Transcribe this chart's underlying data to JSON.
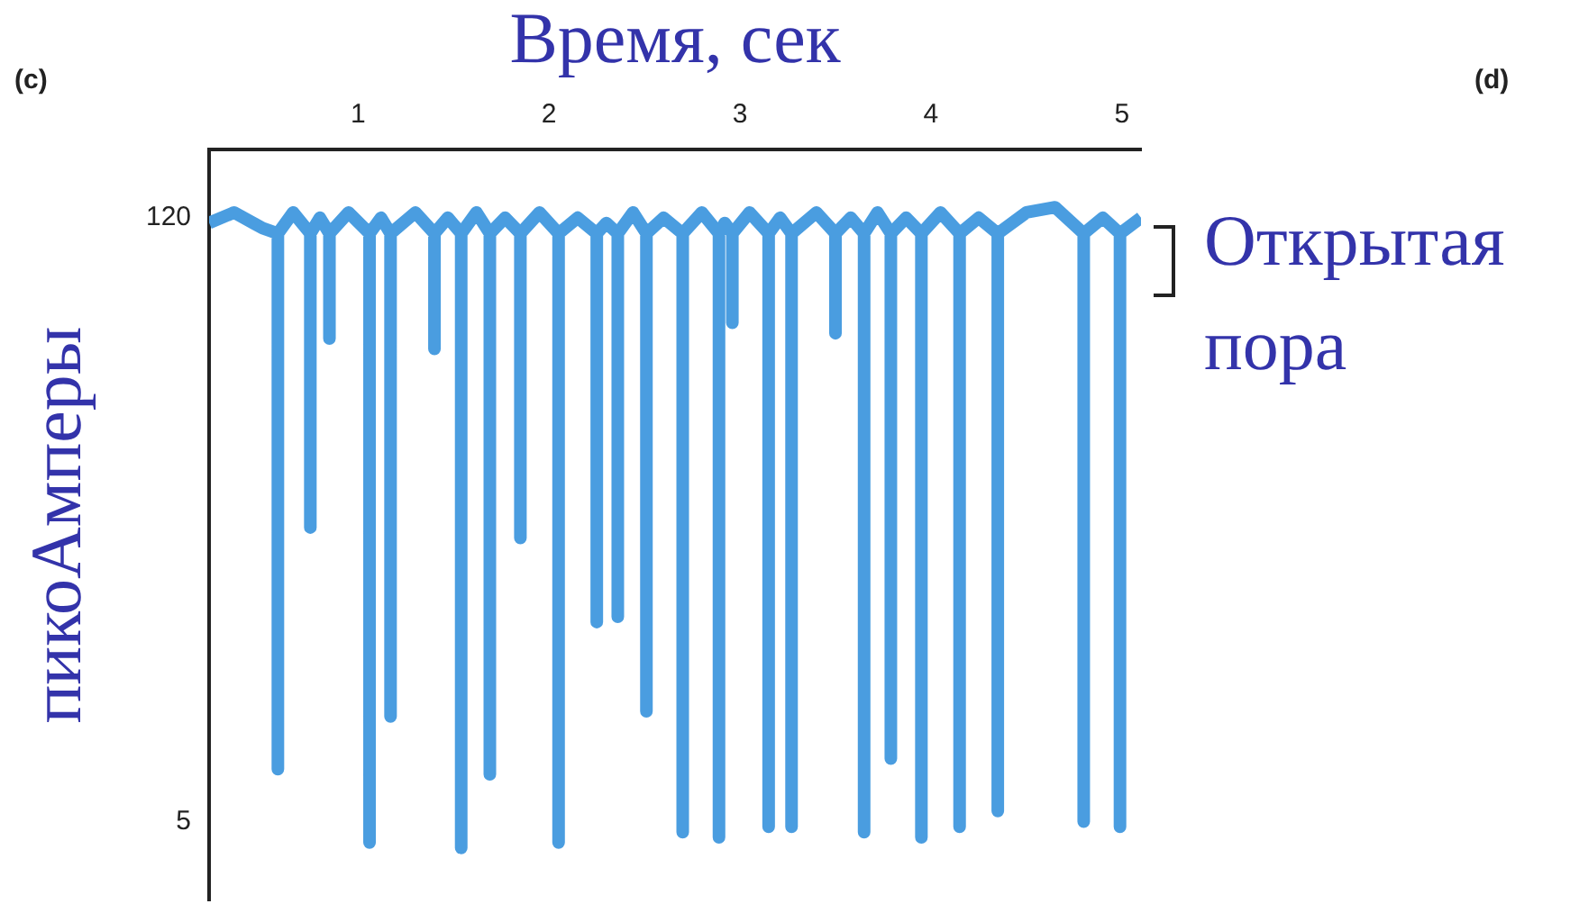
{
  "chart_data": {
    "type": "line",
    "xlabel": "Время, сек",
    "ylabel": "пикоАмперы",
    "annotations": [
      "(c)",
      "(d)",
      "Открытая пора"
    ],
    "x": [
      0.22,
      0.35,
      0.5,
      0.58,
      0.58,
      0.58,
      0.66,
      0.75,
      0.75,
      0.75,
      0.8,
      0.85,
      0.85,
      0.85,
      0.95,
      1.06,
      1.06,
      1.06,
      1.12,
      1.17,
      1.17,
      1.17,
      1.3,
      1.4,
      1.4,
      1.4,
      1.47,
      1.54,
      1.54,
      1.54,
      1.62,
      1.69,
      1.69,
      1.69,
      1.77,
      1.85,
      1.85,
      1.85,
      1.95,
      2.05,
      2.05,
      2.05,
      2.15,
      2.25,
      2.25,
      2.25,
      2.3,
      2.36,
      2.36,
      2.36,
      2.44,
      2.51,
      2.51,
      2.51,
      2.6,
      2.7,
      2.7,
      2.7,
      2.8,
      2.89,
      2.89,
      2.89,
      2.92,
      2.96,
      2.96,
      2.96,
      3.05,
      3.15,
      3.15,
      3.15,
      3.21,
      3.27,
      3.27,
      3.27,
      3.4,
      3.5,
      3.5,
      3.5,
      3.58,
      3.65,
      3.65,
      3.65,
      3.72,
      3.79,
      3.79,
      3.79,
      3.87,
      3.95,
      3.95,
      3.95,
      4.05,
      4.15,
      4.15,
      4.15,
      4.25,
      4.35,
      4.35,
      4.35,
      4.5,
      4.65,
      4.8,
      4.8,
      4.8,
      4.9,
      4.99,
      4.99,
      4.99,
      5.1
    ],
    "values": [
      119,
      121,
      118,
      117,
      15,
      117,
      121,
      117,
      61,
      117,
      120,
      117,
      97,
      117,
      121,
      117,
      1,
      117,
      120,
      117,
      25,
      117,
      121,
      117,
      95,
      117,
      120,
      117,
      0,
      117,
      121,
      117,
      14,
      117,
      120,
      117,
      59,
      117,
      121,
      117,
      1,
      117,
      120,
      117,
      43,
      117,
      119,
      117,
      44,
      117,
      121,
      117,
      26,
      117,
      120,
      117,
      3,
      117,
      121,
      117,
      2,
      117,
      119,
      117,
      100,
      117,
      121,
      117,
      4,
      117,
      120,
      117,
      4,
      117,
      121,
      117,
      98,
      117,
      120,
      117,
      3,
      117,
      121,
      117,
      17,
      117,
      120,
      117,
      2,
      117,
      121,
      117,
      4,
      117,
      120,
      117,
      7,
      117,
      121,
      122,
      117,
      5,
      117,
      120,
      117,
      4,
      117,
      120
    ],
    "color": "#4a9de0",
    "xlim": [
      0.22,
      5.1
    ],
    "ylim": [
      -10,
      133
    ],
    "xticks": [
      1,
      2,
      3,
      4,
      5
    ],
    "yticks": [
      120,
      5
    ],
    "grid": false,
    "legend": false,
    "marker": "none",
    "line_style": "solid"
  }
}
